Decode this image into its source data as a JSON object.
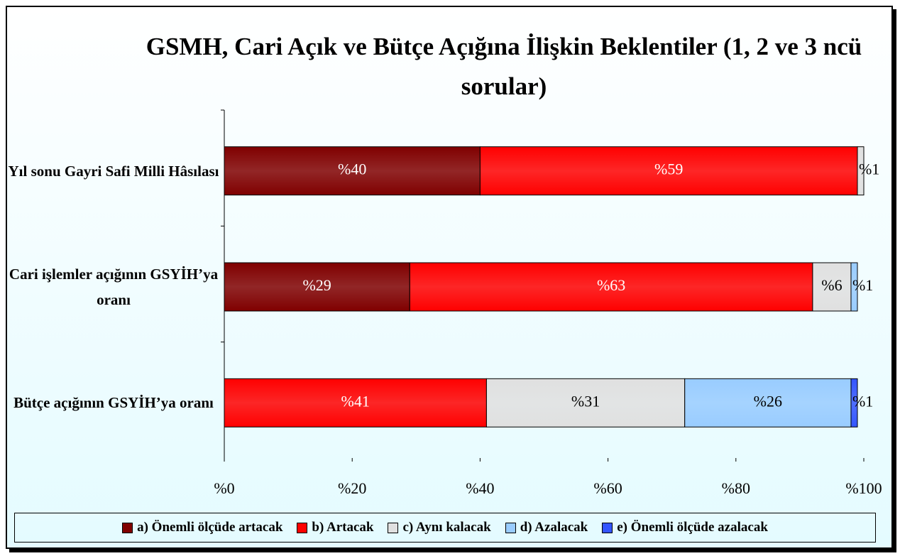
{
  "chart_data": {
    "type": "bar",
    "orientation": "horizontal",
    "stacked": true,
    "title": "GSMH, Cari Açık ve Bütçe Açığına İlişkin Beklentiler (1, 2 ve 3 ncü sorular)",
    "categories": [
      "Yıl sonu Gayri Safi Milli Hâsılası",
      "Cari işlemler açığının GSYİH’ya oranı",
      "Bütçe açığının GSYİH’ya oranı"
    ],
    "series": [
      {
        "name": "a) Önemli ölçüde artacak",
        "color": "#800000",
        "values": [
          40,
          29,
          null
        ],
        "value_labels": [
          "%40",
          "%29",
          null
        ]
      },
      {
        "name": "b) Artacak",
        "color": "#ff0000",
        "values": [
          59,
          63,
          41
        ],
        "value_labels": [
          "%59",
          "%63",
          "%41"
        ]
      },
      {
        "name": "c) Aynı kalacak",
        "color": "#e0e0e0",
        "values": [
          1,
          6,
          31
        ],
        "value_labels": [
          "%1",
          "%6",
          "%31"
        ]
      },
      {
        "name": "d) Azalacak",
        "color": "#99ccff",
        "values": [
          null,
          1,
          26
        ],
        "value_labels": [
          null,
          "%1",
          "%26"
        ]
      },
      {
        "name": "e) Önemli ölçüde azalacak",
        "color": "#3355ff",
        "values": [
          null,
          null,
          1
        ],
        "value_labels": [
          null,
          null,
          "%1"
        ]
      }
    ],
    "xlim": [
      0,
      100
    ],
    "xticks": [
      {
        "value": 0,
        "label": "%0"
      },
      {
        "value": 20,
        "label": "%20"
      },
      {
        "value": 40,
        "label": "%40"
      },
      {
        "value": 60,
        "label": "%60"
      },
      {
        "value": 80,
        "label": "%80"
      },
      {
        "value": 100,
        "label": "%100"
      }
    ],
    "legend": "bottom"
  }
}
